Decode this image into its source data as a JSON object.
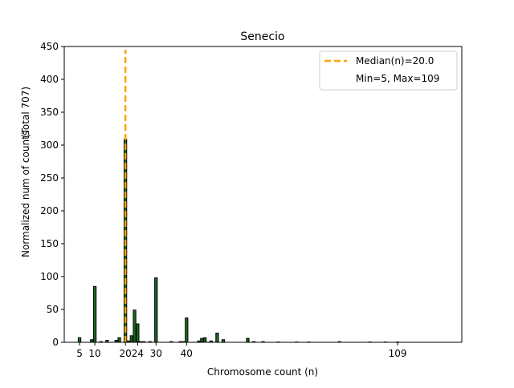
{
  "chart_data": {
    "type": "bar",
    "title": "Senecio",
    "xlabel": "Chromosome count (n)",
    "ylabel": "Normalized num of counts",
    "ylabel2": "(Total 707)",
    "xlim": [
      0,
      130
    ],
    "ylim": [
      0,
      450
    ],
    "yticks": [
      0,
      50,
      100,
      150,
      200,
      250,
      300,
      350,
      400,
      450
    ],
    "xticks": [
      5,
      10,
      20,
      24,
      30,
      40,
      109
    ],
    "bar_color": "#1e6b1e",
    "median_color": "#ffa500",
    "median": 20.0,
    "legend": {
      "position": "top-right",
      "entries": [
        "Median(n)=20.0",
        "Min=5, Max=109"
      ]
    },
    "x": [
      5,
      9,
      10,
      12,
      14,
      17,
      18,
      20,
      21,
      22,
      23,
      24,
      25,
      26,
      28,
      30,
      35,
      38,
      39,
      40,
      44,
      45,
      46,
      48,
      50,
      52,
      60,
      62,
      65,
      70,
      76,
      80,
      90,
      100,
      105,
      109
    ],
    "values": [
      7,
      4,
      85,
      1,
      3,
      3,
      7,
      309,
      2,
      10,
      49,
      28,
      1,
      1,
      1,
      98,
      1,
      1,
      1,
      37,
      2,
      6,
      7,
      2,
      14,
      4,
      6,
      1,
      1,
      0.5,
      0.5,
      0.5,
      1,
      0.5,
      0.5,
      0.5
    ]
  }
}
